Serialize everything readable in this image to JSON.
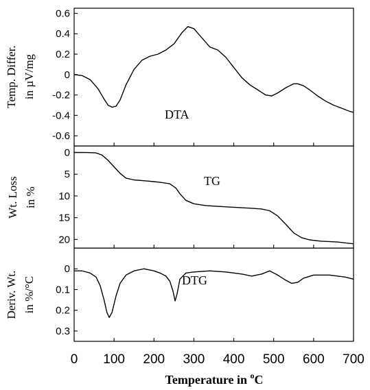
{
  "chart_data": [
    {
      "type": "line",
      "annotation": "DTA",
      "ylabel": [
        "Temp. Differ.",
        "in µV/mg"
      ],
      "xlim": [
        0,
        700
      ],
      "ylim": [
        -0.7,
        0.65
      ],
      "yticks": [
        "0.6",
        "0.4",
        "0.2",
        "0",
        "-0.2",
        "-0.4",
        "-0.6"
      ],
      "ytick_values": [
        0.6,
        0.4,
        0.2,
        0,
        -0.2,
        -0.4,
        -0.6
      ],
      "series": [
        {
          "x": [
            0,
            20,
            40,
            60,
            75,
            85,
            95,
            105,
            115,
            130,
            150,
            170,
            190,
            210,
            230,
            250,
            270,
            285,
            300,
            320,
            340,
            360,
            380,
            400,
            420,
            440,
            460,
            480,
            495,
            510,
            530,
            550,
            560,
            575,
            590,
            610,
            630,
            650,
            670,
            690,
            700
          ],
          "y": [
            0,
            -0.01,
            -0.05,
            -0.14,
            -0.24,
            -0.3,
            -0.32,
            -0.31,
            -0.25,
            -0.1,
            0.05,
            0.14,
            0.18,
            0.2,
            0.24,
            0.3,
            0.41,
            0.47,
            0.45,
            0.36,
            0.27,
            0.24,
            0.17,
            0.07,
            -0.03,
            -0.1,
            -0.15,
            -0.2,
            -0.21,
            -0.18,
            -0.13,
            -0.09,
            -0.09,
            -0.11,
            -0.15,
            -0.21,
            -0.26,
            -0.3,
            -0.33,
            -0.36,
            -0.37
          ]
        }
      ]
    },
    {
      "type": "line",
      "annotation": "TG",
      "ylabel": [
        "Wt. Loss",
        "in %"
      ],
      "xlim": [
        0,
        700
      ],
      "ylim": [
        -1.5,
        22
      ],
      "yticks": [
        "0",
        "5",
        "10",
        "15",
        "20"
      ],
      "ytick_values": [
        0,
        5,
        10,
        15,
        20
      ],
      "series": [
        {
          "x": [
            0,
            30,
            55,
            70,
            85,
            100,
            115,
            130,
            150,
            175,
            200,
            220,
            240,
            255,
            265,
            280,
            300,
            330,
            360,
            400,
            440,
            470,
            490,
            510,
            530,
            550,
            570,
            590,
            620,
            660,
            700
          ],
          "y": [
            0,
            0,
            0.1,
            0.6,
            1.8,
            3.3,
            4.8,
            5.9,
            6.3,
            6.5,
            6.7,
            6.9,
            7.2,
            8.2,
            9.5,
            11,
            11.8,
            12.2,
            12.4,
            12.6,
            12.8,
            13.0,
            13.4,
            14.6,
            16.5,
            18.5,
            19.6,
            20.1,
            20.4,
            20.6,
            21.0
          ]
        }
      ]
    },
    {
      "type": "line",
      "annotation": "DTG",
      "ylabel": [
        "Deriv. Wt.",
        "in %/°C"
      ],
      "xlim": [
        0,
        700
      ],
      "ylim": [
        -0.1,
        0.35
      ],
      "yticks": [
        "0",
        "0.1",
        "0.2",
        "0.3"
      ],
      "ytick_values": [
        0,
        0.1,
        0.2,
        0.3
      ],
      "series": [
        {
          "x": [
            0,
            20,
            40,
            55,
            65,
            75,
            82,
            88,
            95,
            105,
            115,
            130,
            150,
            175,
            200,
            215,
            230,
            240,
            248,
            253,
            258,
            265,
            280,
            300,
            340,
            380,
            420,
            445,
            470,
            490,
            510,
            530,
            545,
            560,
            575,
            600,
            640,
            680,
            700
          ],
          "y": [
            0.01,
            0.01,
            0.02,
            0.04,
            0.08,
            0.15,
            0.21,
            0.235,
            0.21,
            0.13,
            0.07,
            0.03,
            0.01,
            0.0,
            0.01,
            0.02,
            0.035,
            0.06,
            0.11,
            0.155,
            0.12,
            0.05,
            0.02,
            0.015,
            0.01,
            0.015,
            0.025,
            0.035,
            0.025,
            0.01,
            0.03,
            0.055,
            0.07,
            0.065,
            0.045,
            0.03,
            0.03,
            0.04,
            0.05
          ]
        }
      ]
    }
  ],
  "xaxis": {
    "ticks": [
      "0",
      "100",
      "200",
      "300",
      "400",
      "500",
      "600",
      "700"
    ],
    "tick_values": [
      0,
      100,
      200,
      300,
      400,
      500,
      600,
      700
    ],
    "label": "Temperature in",
    "label_sup": "o",
    "label_unit": "C"
  }
}
